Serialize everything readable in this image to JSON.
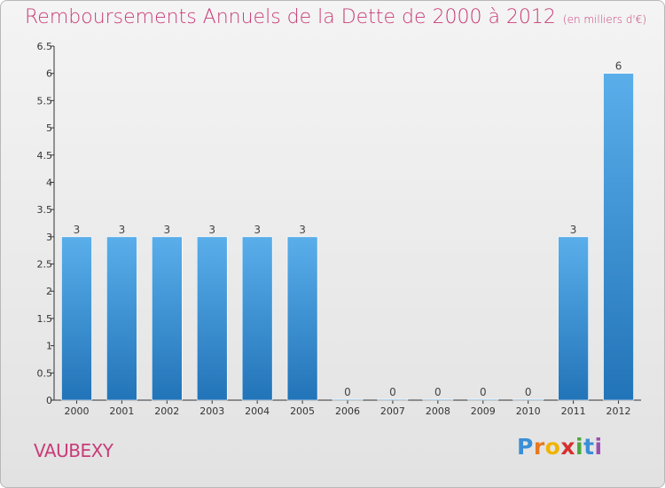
{
  "header": {
    "title": "Remboursements Annuels de la Dette de 2000 à 2012",
    "unit": "(en milliers d'€)"
  },
  "footer": {
    "town": "VAUBEXY",
    "logo_letters": [
      "P",
      "r",
      "o",
      "x",
      "i",
      "t",
      "i"
    ],
    "logo_colors": [
      "#3a8fd6",
      "#e8781e",
      "#f0b400",
      "#d6302e",
      "#4aa83c",
      "#3a8fd6",
      "#9a4fb0"
    ]
  },
  "colors": {
    "bar_top": "#5aaeea",
    "bar_bottom": "#2274b8",
    "accent": "#c83c78",
    "axis": "#333333"
  },
  "chart_data": {
    "type": "bar",
    "title": "Remboursements Annuels de la Dette de 2000 à 2012",
    "xlabel": "",
    "ylabel": "",
    "categories": [
      "2000",
      "2001",
      "2002",
      "2003",
      "2004",
      "2005",
      "2006",
      "2007",
      "2008",
      "2009",
      "2010",
      "2011",
      "2012"
    ],
    "values": [
      3,
      3,
      3,
      3,
      3,
      3,
      0,
      0,
      0,
      0,
      0,
      3,
      6
    ],
    "data_labels": [
      "3",
      "3",
      "3",
      "3",
      "3",
      "3",
      "0",
      "0",
      "0",
      "0",
      "0",
      "3",
      "6"
    ],
    "ylim": [
      0,
      6.5
    ],
    "yticks": [
      0,
      0.5,
      1,
      1.5,
      2,
      2.5,
      3,
      3.5,
      4,
      4.5,
      5,
      5.5,
      6,
      6.5
    ],
    "ytick_labels": [
      "0",
      "0.5",
      "1",
      "1.5",
      "2",
      "2.5",
      "3",
      "3.5",
      "4",
      "4.5",
      "5",
      "5.5",
      "6",
      "6.5"
    ],
    "grid": false,
    "legend": "none"
  }
}
